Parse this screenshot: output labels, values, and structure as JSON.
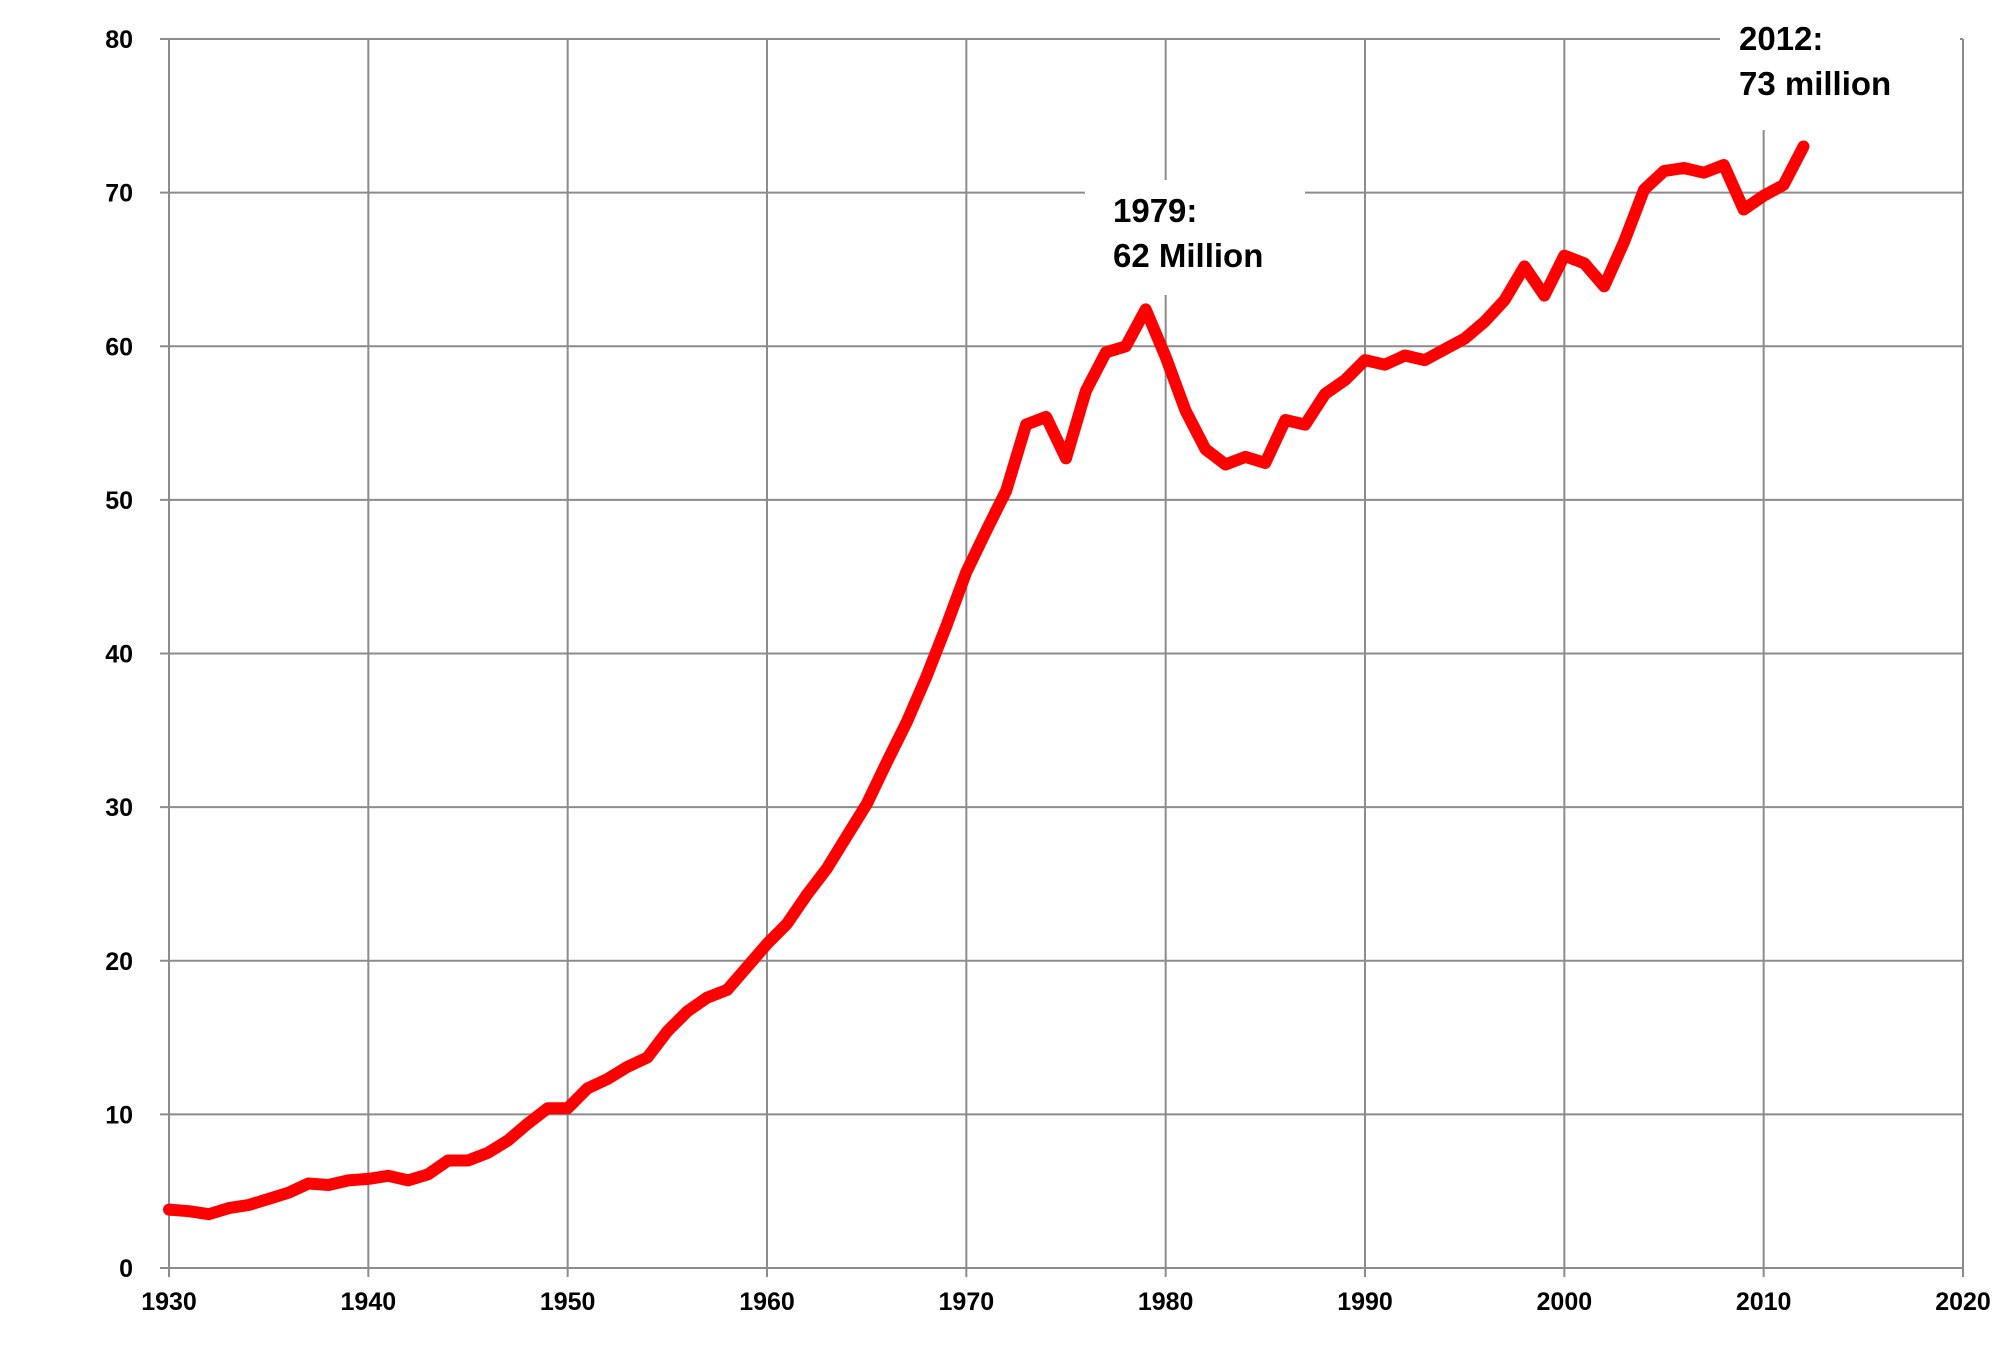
{
  "chart_data": {
    "type": "line",
    "title": "",
    "xlabel": "",
    "ylabel": "",
    "xlim": [
      1930,
      2020
    ],
    "ylim": [
      0,
      80
    ],
    "x_ticks": [
      1930,
      1940,
      1950,
      1960,
      1970,
      1980,
      1990,
      2000,
      2010,
      2020
    ],
    "y_ticks": [
      0,
      10,
      20,
      30,
      40,
      50,
      60,
      70,
      80
    ],
    "grid": true,
    "legend": "none",
    "series": [
      {
        "color": "#ff0000",
        "x": [
          1930,
          1931,
          1932,
          1933,
          1934,
          1935,
          1936,
          1937,
          1938,
          1939,
          1940,
          1941,
          1942,
          1943,
          1944,
          1945,
          1946,
          1947,
          1948,
          1949,
          1950,
          1951,
          1952,
          1953,
          1954,
          1955,
          1956,
          1957,
          1958,
          1959,
          1960,
          1961,
          1962,
          1963,
          1964,
          1965,
          1966,
          1967,
          1968,
          1969,
          1970,
          1971,
          1972,
          1973,
          1974,
          1975,
          1976,
          1977,
          1978,
          1979,
          1980,
          1981,
          1982,
          1983,
          1984,
          1985,
          1986,
          1987,
          1988,
          1989,
          1990,
          1991,
          1992,
          1993,
          1994,
          1995,
          1996,
          1997,
          1998,
          1999,
          2000,
          2001,
          2002,
          2003,
          2004,
          2005,
          2006,
          2007,
          2008,
          2009,
          2010,
          2011,
          2012
        ],
        "values": [
          3.8,
          3.7,
          3.5,
          3.9,
          4.1,
          4.5,
          4.9,
          5.5,
          5.4,
          5.7,
          5.8,
          6.0,
          5.7,
          6.1,
          7.0,
          7.0,
          7.5,
          8.3,
          9.4,
          10.4,
          10.4,
          11.7,
          12.3,
          13.1,
          13.7,
          15.4,
          16.7,
          17.6,
          18.1,
          19.6,
          21.1,
          22.4,
          24.3,
          26.0,
          28.1,
          30.2,
          32.9,
          35.5,
          38.5,
          41.8,
          45.3,
          48.0,
          50.6,
          54.9,
          55.4,
          52.7,
          57.1,
          59.6,
          60.0,
          62.4,
          59.3,
          55.8,
          53.3,
          52.3,
          52.8,
          52.4,
          55.2,
          54.9,
          56.9,
          57.8,
          59.1,
          58.8,
          59.4,
          59.1,
          59.8,
          60.5,
          61.6,
          63.0,
          65.2,
          63.3,
          65.9,
          65.4,
          63.9,
          66.8,
          70.2,
          71.4,
          71.6,
          71.3,
          71.8,
          68.9,
          69.8,
          70.5,
          73.0
        ]
      }
    ],
    "annotations": [
      {
        "id": "1979",
        "lines": [
          "1979:",
          "62  Million"
        ],
        "x": 1979,
        "y": 62.4
      },
      {
        "id": "2012",
        "lines": [
          "2012:",
          "73 million"
        ],
        "x": 2012,
        "y": 73.0
      }
    ]
  }
}
